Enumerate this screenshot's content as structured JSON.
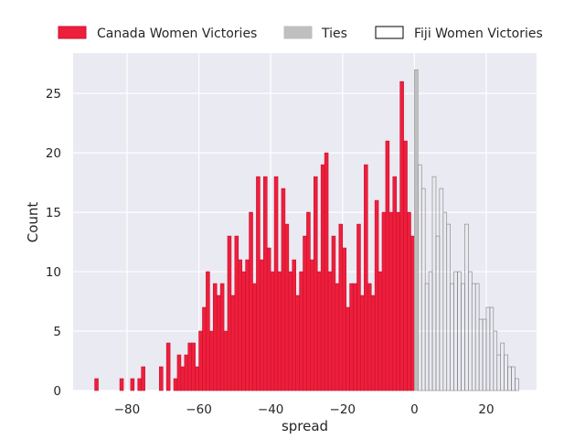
{
  "chart_data": {
    "type": "bar",
    "subtype": "histogram",
    "xlabel": "spread",
    "ylabel": "Count",
    "xlim": [
      -95,
      34
    ],
    "ylim": [
      0,
      28.4
    ],
    "xticks": [
      -80,
      -60,
      -40,
      -20,
      0,
      20
    ],
    "yticks": [
      0,
      5,
      10,
      15,
      20,
      25
    ],
    "bin_width": 1,
    "grid": true,
    "legend_position": "top",
    "series": [
      {
        "name": "Canada Women Victories",
        "color": "#EE1F3C",
        "edgecolor": "#c8102e",
        "fill": true,
        "bins": [
          [
            -89,
            1
          ],
          [
            -82,
            1
          ],
          [
            -79,
            1
          ],
          [
            -77,
            1
          ],
          [
            -76,
            2
          ],
          [
            -71,
            2
          ],
          [
            -69,
            4
          ],
          [
            -67,
            1
          ],
          [
            -66,
            3
          ],
          [
            -65,
            2
          ],
          [
            -64,
            3
          ],
          [
            -63,
            4
          ],
          [
            -62,
            4
          ],
          [
            -61,
            2
          ],
          [
            -60,
            5
          ],
          [
            -59,
            7
          ],
          [
            -58,
            10
          ],
          [
            -57,
            5
          ],
          [
            -56,
            9
          ],
          [
            -55,
            8
          ],
          [
            -54,
            9
          ],
          [
            -53,
            5
          ],
          [
            -52,
            13
          ],
          [
            -51,
            8
          ],
          [
            -50,
            13
          ],
          [
            -49,
            11
          ],
          [
            -48,
            10
          ],
          [
            -47,
            11
          ],
          [
            -46,
            15
          ],
          [
            -45,
            9
          ],
          [
            -44,
            18
          ],
          [
            -43,
            11
          ],
          [
            -42,
            18
          ],
          [
            -41,
            12
          ],
          [
            -40,
            10
          ],
          [
            -39,
            18
          ],
          [
            -38,
            10
          ],
          [
            -37,
            17
          ],
          [
            -36,
            14
          ],
          [
            -35,
            10
          ],
          [
            -34,
            11
          ],
          [
            -33,
            8
          ],
          [
            -32,
            10
          ],
          [
            -31,
            13
          ],
          [
            -30,
            15
          ],
          [
            -29,
            11
          ],
          [
            -28,
            18
          ],
          [
            -27,
            10
          ],
          [
            -26,
            19
          ],
          [
            -25,
            20
          ],
          [
            -24,
            10
          ],
          [
            -23,
            13
          ],
          [
            -22,
            9
          ],
          [
            -21,
            14
          ],
          [
            -20,
            12
          ],
          [
            -19,
            7
          ],
          [
            -18,
            9
          ],
          [
            -17,
            9
          ],
          [
            -16,
            14
          ],
          [
            -15,
            8
          ],
          [
            -14,
            19
          ],
          [
            -13,
            9
          ],
          [
            -12,
            8
          ],
          [
            -11,
            16
          ],
          [
            -10,
            10
          ],
          [
            -9,
            15
          ],
          [
            -8,
            21
          ],
          [
            -7,
            15
          ],
          [
            -6,
            18
          ],
          [
            -5,
            15
          ],
          [
            -4,
            26
          ],
          [
            -3,
            21
          ],
          [
            -2,
            15
          ],
          [
            -1,
            13
          ]
        ]
      },
      {
        "name": "Ties",
        "color": "#BFBFBF",
        "edgecolor": "#9a9a9a",
        "fill": true,
        "bins": [
          [
            0,
            27
          ]
        ]
      },
      {
        "name": "Fiji Women Victories",
        "color": "#000000",
        "edgecolor": "#7f7f7f",
        "fill": false,
        "bins": [
          [
            1,
            19
          ],
          [
            2,
            17
          ],
          [
            3,
            9
          ],
          [
            4,
            10
          ],
          [
            5,
            18
          ],
          [
            6,
            13
          ],
          [
            7,
            17
          ],
          [
            8,
            15
          ],
          [
            9,
            14
          ],
          [
            10,
            9
          ],
          [
            11,
            10
          ],
          [
            12,
            10
          ],
          [
            13,
            9
          ],
          [
            14,
            14
          ],
          [
            15,
            10
          ],
          [
            16,
            9
          ],
          [
            17,
            9
          ],
          [
            18,
            6
          ],
          [
            19,
            6
          ],
          [
            20,
            7
          ],
          [
            21,
            7
          ],
          [
            22,
            5
          ],
          [
            23,
            3
          ],
          [
            24,
            4
          ],
          [
            25,
            3
          ],
          [
            26,
            2
          ],
          [
            27,
            2
          ],
          [
            28,
            1
          ]
        ]
      }
    ]
  }
}
